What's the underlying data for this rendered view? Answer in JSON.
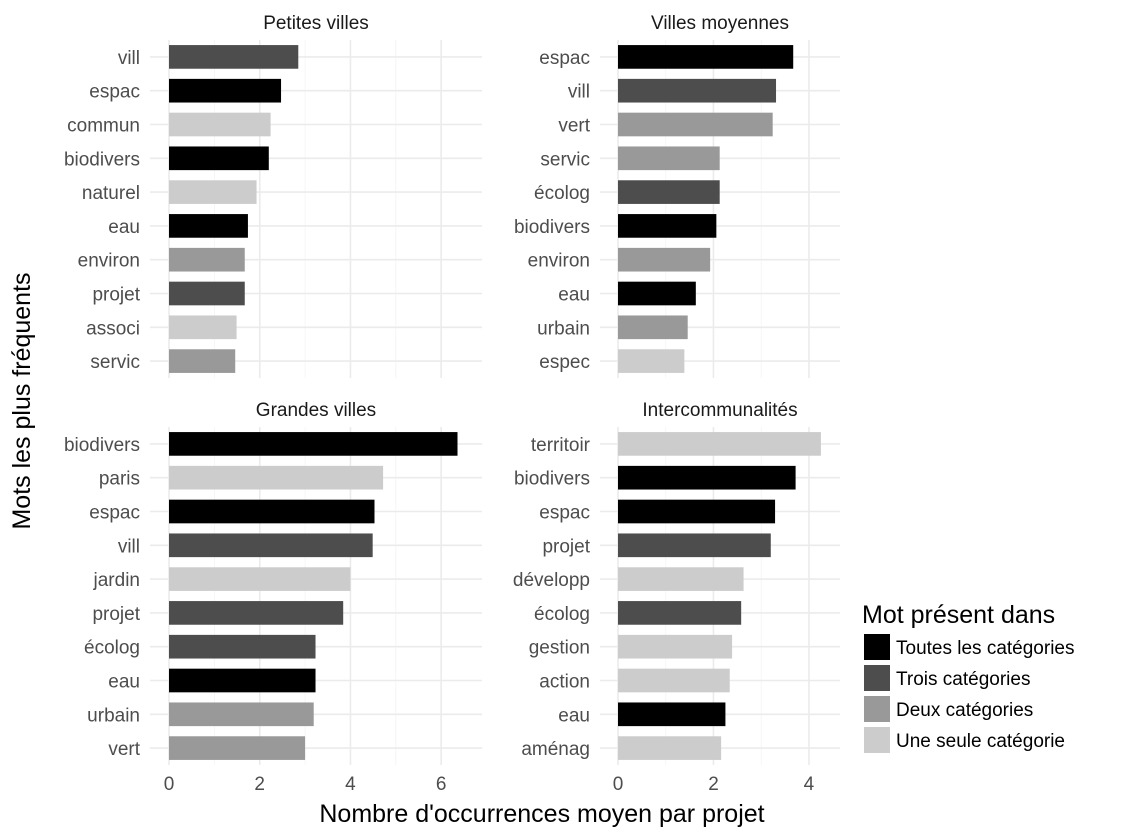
{
  "chart_data": {
    "type": "bar",
    "orientation": "horizontal",
    "xlabel": "Nombre d'occurrences moyen par projet",
    "ylabel": "Mots les plus fréquents",
    "grid": true,
    "legend": {
      "title": "Mot présent dans",
      "placement": "right",
      "entries": [
        {
          "key": "toutes",
          "label": "Toutes les catégories",
          "color": "#000000"
        },
        {
          "key": "trois",
          "label": "Trois catégories",
          "color": "#4d4d4d"
        },
        {
          "key": "deux",
          "label": "Deux catégories",
          "color": "#999999"
        },
        {
          "key": "une",
          "label": "Une seule catégorie",
          "color": "#cccccc"
        }
      ]
    },
    "panels": [
      {
        "title": "Petites villes",
        "xlim": [
          0,
          6.9
        ],
        "xticks": [
          "0",
          "2",
          "4",
          "6"
        ],
        "xtick_values": [
          0,
          2,
          4,
          6
        ],
        "bars": [
          {
            "label": "vill",
            "value": 2.85,
            "cat": "trois"
          },
          {
            "label": "espac",
            "value": 2.47,
            "cat": "toutes"
          },
          {
            "label": "commun",
            "value": 2.24,
            "cat": "une"
          },
          {
            "label": "biodivers",
            "value": 2.2,
            "cat": "toutes"
          },
          {
            "label": "naturel",
            "value": 1.93,
            "cat": "une"
          },
          {
            "label": "eau",
            "value": 1.74,
            "cat": "toutes"
          },
          {
            "label": "environ",
            "value": 1.67,
            "cat": "deux"
          },
          {
            "label": "projet",
            "value": 1.67,
            "cat": "trois"
          },
          {
            "label": "associ",
            "value": 1.49,
            "cat": "une"
          },
          {
            "label": "servic",
            "value": 1.46,
            "cat": "deux"
          }
        ]
      },
      {
        "title": "Villes moyennes",
        "xlim": [
          0,
          4.65
        ],
        "xticks": [
          "0",
          "2",
          "4"
        ],
        "xtick_values": [
          0,
          2,
          4
        ],
        "bars": [
          {
            "label": "espac",
            "value": 3.67,
            "cat": "toutes"
          },
          {
            "label": "vill",
            "value": 3.31,
            "cat": "trois"
          },
          {
            "label": "vert",
            "value": 3.24,
            "cat": "deux"
          },
          {
            "label": "servic",
            "value": 2.13,
            "cat": "deux"
          },
          {
            "label": "écolog",
            "value": 2.13,
            "cat": "trois"
          },
          {
            "label": "biodivers",
            "value": 2.06,
            "cat": "toutes"
          },
          {
            "label": "environ",
            "value": 1.93,
            "cat": "deux"
          },
          {
            "label": "eau",
            "value": 1.63,
            "cat": "toutes"
          },
          {
            "label": "urbain",
            "value": 1.46,
            "cat": "deux"
          },
          {
            "label": "espec",
            "value": 1.39,
            "cat": "une"
          }
        ]
      },
      {
        "title": "Grandes villes",
        "xlim": [
          0,
          6.9
        ],
        "xticks": [
          "0",
          "2",
          "4",
          "6"
        ],
        "xtick_values": [
          0,
          2,
          4,
          6
        ],
        "bars": [
          {
            "label": "biodivers",
            "value": 6.36,
            "cat": "toutes"
          },
          {
            "label": "paris",
            "value": 4.72,
            "cat": "une"
          },
          {
            "label": "espac",
            "value": 4.53,
            "cat": "toutes"
          },
          {
            "label": "vill",
            "value": 4.49,
            "cat": "trois"
          },
          {
            "label": "jardin",
            "value": 4.0,
            "cat": "une"
          },
          {
            "label": "projet",
            "value": 3.84,
            "cat": "trois"
          },
          {
            "label": "écolog",
            "value": 3.23,
            "cat": "trois"
          },
          {
            "label": "eau",
            "value": 3.23,
            "cat": "toutes"
          },
          {
            "label": "urbain",
            "value": 3.19,
            "cat": "deux"
          },
          {
            "label": "vert",
            "value": 3.0,
            "cat": "deux"
          }
        ]
      },
      {
        "title": "Intercommunalités",
        "xlim": [
          0,
          4.65
        ],
        "xticks": [
          "0",
          "2",
          "4"
        ],
        "xtick_values": [
          0,
          2,
          4
        ],
        "bars": [
          {
            "label": "territoir",
            "value": 4.25,
            "cat": "une"
          },
          {
            "label": "biodivers",
            "value": 3.72,
            "cat": "toutes"
          },
          {
            "label": "espac",
            "value": 3.29,
            "cat": "toutes"
          },
          {
            "label": "projet",
            "value": 3.2,
            "cat": "trois"
          },
          {
            "label": "développ",
            "value": 2.63,
            "cat": "une"
          },
          {
            "label": "écolog",
            "value": 2.58,
            "cat": "trois"
          },
          {
            "label": "gestion",
            "value": 2.39,
            "cat": "une"
          },
          {
            "label": "action",
            "value": 2.34,
            "cat": "une"
          },
          {
            "label": "eau",
            "value": 2.25,
            "cat": "toutes"
          },
          {
            "label": "aménag",
            "value": 2.16,
            "cat": "une"
          }
        ]
      }
    ]
  }
}
